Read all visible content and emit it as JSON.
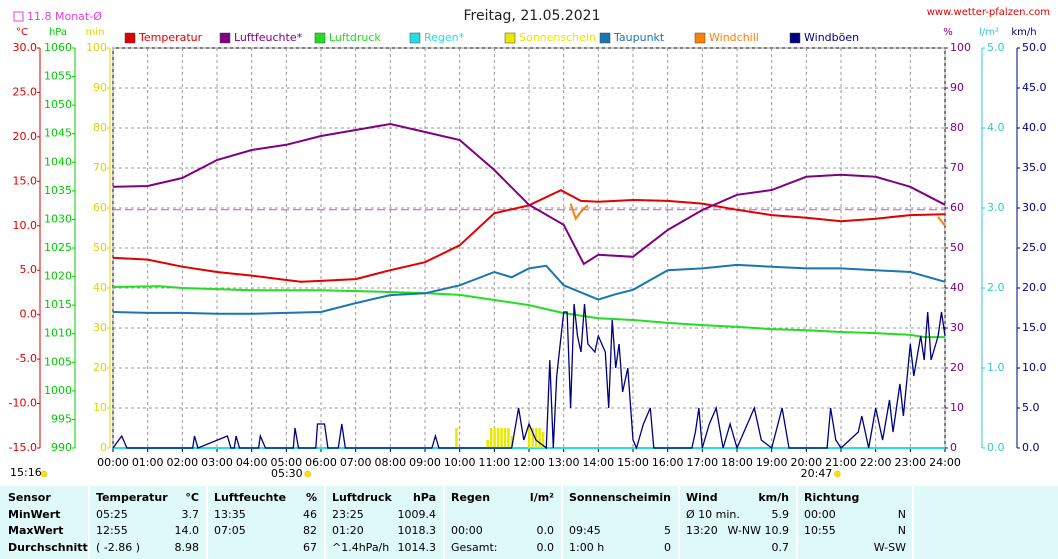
{
  "header": {
    "site": "www.wetter-pfalzen.com"
  },
  "chart_data": {
    "type": "line",
    "title": "Freitag, 21.05.2021",
    "monthly_average": 11.8,
    "monthly_average_label": "11.8 Monat-Ø",
    "monthly_average_color": "#e040e0",
    "xlim": [
      0,
      24
    ],
    "xticks": [
      {
        "value": 0,
        "label": "00:00"
      },
      {
        "value": 1,
        "label": "01:00"
      },
      {
        "value": 2,
        "label": "02:00"
      },
      {
        "value": 3,
        "label": "03:00"
      },
      {
        "value": 4,
        "label": "04:00"
      },
      {
        "value": 5,
        "label": "05:00"
      },
      {
        "value": 6,
        "label": "06:00"
      },
      {
        "value": 7,
        "label": "07:00"
      },
      {
        "value": 8,
        "label": "08:00"
      },
      {
        "value": 9,
        "label": "09:00"
      },
      {
        "value": 10,
        "label": "10:00"
      },
      {
        "value": 11,
        "label": "11:00"
      },
      {
        "value": 12,
        "label": "12:00"
      },
      {
        "value": 13,
        "label": "13:00"
      },
      {
        "value": 14,
        "label": "14:00"
      },
      {
        "value": 15,
        "label": "15:00"
      },
      {
        "value": 16,
        "label": "16:00"
      },
      {
        "value": 17,
        "label": "17:00"
      },
      {
        "value": 18,
        "label": "18:00"
      },
      {
        "value": 19,
        "label": "19:00"
      },
      {
        "value": 20,
        "label": "20:00"
      },
      {
        "value": 21,
        "label": "21:00"
      },
      {
        "value": 22,
        "label": "22:00"
      },
      {
        "value": 23,
        "label": "23:00"
      },
      {
        "value": 24,
        "label": "24:00"
      }
    ],
    "grid": true,
    "grid_axis": "pct",
    "axes": {
      "temp": {
        "label": "°C",
        "side": "left",
        "color": "#e00000",
        "lim": [
          -15,
          30
        ],
        "ticks": [
          {
            "value": -15,
            "label": "-15.0"
          },
          {
            "value": -10,
            "label": "-10.0"
          },
          {
            "value": -5,
            "label": "-5.0"
          },
          {
            "value": 0,
            "label": "0.0"
          },
          {
            "value": 5,
            "label": "5.0"
          },
          {
            "value": 10,
            "label": "10.0"
          },
          {
            "value": 15,
            "label": "15.0"
          },
          {
            "value": 20,
            "label": "20.0"
          },
          {
            "value": 25,
            "label": "25.0"
          },
          {
            "value": 30,
            "label": "30.0"
          }
        ]
      },
      "hpa": {
        "label": "hPa",
        "side": "left",
        "color": "#00cc00",
        "lim": [
          990,
          1060
        ],
        "ticks": [
          990,
          995,
          1000,
          1005,
          1010,
          1015,
          1020,
          1025,
          1030,
          1035,
          1040,
          1045,
          1050,
          1055,
          1060
        ]
      },
      "min": {
        "label": "min",
        "side": "left",
        "color": "#d8d800",
        "lim": [
          0,
          100
        ],
        "ticks": [
          0,
          10,
          20,
          30,
          40,
          50,
          60,
          70,
          80,
          90,
          100
        ]
      },
      "pct": {
        "label": "%",
        "side": "right",
        "color": "#800080",
        "lim": [
          0,
          100
        ],
        "ticks": [
          0,
          10,
          20,
          30,
          40,
          50,
          60,
          70,
          80,
          90,
          100
        ]
      },
      "rain": {
        "label": "l/m²",
        "side": "right",
        "color": "#33cccc",
        "lim": [
          0,
          5
        ],
        "ticks": [
          {
            "value": 0,
            "label": "0.0"
          },
          {
            "value": 1,
            "label": "1.0"
          },
          {
            "value": 2,
            "label": "2.0"
          },
          {
            "value": 3,
            "label": "3.0"
          },
          {
            "value": 4,
            "label": "4.0"
          },
          {
            "value": 5,
            "label": "5.0"
          }
        ]
      },
      "wind": {
        "label": "km/h",
        "side": "right",
        "color": "#000080",
        "lim": [
          0,
          50
        ],
        "ticks": [
          {
            "value": 0,
            "label": "0.0"
          },
          {
            "value": 5,
            "label": "5.0"
          },
          {
            "value": 10,
            "label": "10.0"
          },
          {
            "value": 15,
            "label": "15.0"
          },
          {
            "value": 20,
            "label": "20.0"
          },
          {
            "value": 25,
            "label": "25.0"
          },
          {
            "value": 30,
            "label": "30.0"
          },
          {
            "value": 35,
            "label": "35.0"
          },
          {
            "value": 40,
            "label": "40.0"
          },
          {
            "value": 45,
            "label": "45.0"
          },
          {
            "value": 50,
            "label": "50.0"
          }
        ]
      }
    },
    "series": [
      {
        "name": "Temperatur",
        "color": "#e00000",
        "axis": "temp",
        "x": [
          0,
          1,
          2,
          3,
          4,
          5,
          5.42,
          6,
          7,
          8,
          9,
          10,
          11,
          12,
          12.92,
          13.5,
          14,
          15,
          16,
          17,
          18,
          19,
          20,
          21,
          22,
          23,
          24
        ],
        "values": [
          6.4,
          6.2,
          5.4,
          4.8,
          4.4,
          3.9,
          3.7,
          3.8,
          4.0,
          5.0,
          5.9,
          7.8,
          11.4,
          12.3,
          14.0,
          12.8,
          12.7,
          12.9,
          12.8,
          12.5,
          11.8,
          11.2,
          10.9,
          10.5,
          10.8,
          11.2,
          11.3
        ]
      },
      {
        "name": "Luftfeuchte*",
        "color": "#800080",
        "axis": "pct",
        "x": [
          0,
          1,
          2,
          3,
          4,
          5,
          6,
          7,
          8,
          9,
          10,
          11,
          12,
          13,
          13.58,
          14,
          15,
          16,
          17,
          18,
          19,
          20,
          21,
          22,
          23,
          24
        ],
        "values": [
          65.3,
          65.5,
          67.5,
          72,
          74.5,
          75.8,
          78,
          79.5,
          81,
          79,
          77,
          69.5,
          60.8,
          55.8,
          46,
          48.3,
          47.8,
          54.5,
          59.5,
          63.3,
          64.5,
          67.8,
          68.3,
          67.8,
          65.3,
          60.8
        ]
      },
      {
        "name": "Luftdruck",
        "color": "#22dd22",
        "axis": "hpa",
        "x": [
          0,
          1.33,
          2,
          4,
          6,
          8,
          9,
          10,
          11,
          12,
          13,
          14,
          15,
          16,
          17,
          18,
          19,
          20,
          21,
          22,
          23,
          23.42,
          24
        ],
        "values": [
          1018.2,
          1018.3,
          1018,
          1017.6,
          1017.6,
          1017.3,
          1017.1,
          1016.8,
          1015.9,
          1015,
          1013.6,
          1012.7,
          1012.4,
          1011.9,
          1011.5,
          1011.2,
          1010.8,
          1010.6,
          1010.3,
          1010.1,
          1009.8,
          1009.4,
          1009.4
        ]
      },
      {
        "name": "Regen*",
        "color": "#22e0e0",
        "axis": "rain",
        "x": [
          0,
          24
        ],
        "values": [
          0,
          0
        ]
      },
      {
        "name": "Sonnenschein",
        "color": "#e8e800",
        "axis": "min",
        "type": "bar",
        "x": [
          9.9,
          10.8,
          10.9,
          11.0,
          11.1,
          11.2,
          11.3,
          11.4,
          11.5,
          12.0,
          12.1,
          12.2,
          12.3,
          12.4
        ],
        "values": [
          5,
          2,
          5,
          5,
          5,
          5,
          5,
          5,
          3,
          5,
          5,
          5,
          5,
          4
        ]
      },
      {
        "name": "Taupunkt",
        "color": "#1a75b0",
        "axis": "temp",
        "x": [
          0,
          1,
          2,
          3,
          4,
          5,
          6,
          7,
          8,
          9,
          10,
          11,
          11.5,
          12,
          12.5,
          13,
          13.5,
          14,
          14.5,
          15,
          16,
          17,
          18,
          19,
          20,
          21,
          22,
          23,
          24
        ],
        "values": [
          0.3,
          0.2,
          0.2,
          0.1,
          0.1,
          0.2,
          0.3,
          1.3,
          2.2,
          2.4,
          3.3,
          4.8,
          4.2,
          5.2,
          5.5,
          3.3,
          2.5,
          1.7,
          2.3,
          2.8,
          5.0,
          5.2,
          5.6,
          5.4,
          5.2,
          5.2,
          5.0,
          4.8,
          3.7
        ]
      },
      {
        "name": "Windchill",
        "color": "#ff8000",
        "axis": "temp",
        "x": [
          13.2,
          13.35,
          13.5,
          13.7,
          18,
          23.8,
          24
        ],
        "values": [
          12.5,
          10.8,
          11.6,
          12.3,
          null,
          11.0,
          10.0
        ]
      },
      {
        "name": "Windböen",
        "color": "#000080",
        "axis": "wind",
        "x": [
          0,
          0.25,
          0.4,
          2.3,
          2.35,
          2.45,
          3.3,
          3.4,
          3.5,
          3.55,
          3.65,
          4.2,
          4.25,
          4.4,
          5.2,
          5.25,
          5.35,
          5.85,
          5.9,
          6.1,
          6.2,
          6.5,
          6.6,
          6.7,
          9.2,
          9.3,
          9.4,
          11.5,
          11.7,
          11.85,
          12.0,
          12.2,
          12.5,
          12.6,
          12.7,
          12.8,
          13.0,
          13.1,
          13.2,
          13.3,
          13.4,
          13.5,
          13.6,
          13.7,
          13.9,
          14.0,
          14.2,
          14.3,
          14.4,
          14.5,
          14.6,
          14.7,
          14.85,
          15.0,
          15.1,
          15.3,
          15.5,
          15.6,
          16.7,
          16.8,
          16.9,
          17.0,
          17.2,
          17.4,
          17.6,
          17.8,
          18.0,
          18.5,
          18.7,
          19.0,
          19.3,
          19.5,
          20.6,
          20.7,
          20.85,
          21.0,
          21.5,
          21.6,
          21.8,
          22.0,
          22.2,
          22.4,
          22.5,
          22.7,
          22.8,
          23.0,
          23.1,
          23.3,
          23.4,
          23.5,
          23.6,
          23.8,
          23.9,
          24
        ],
        "values": [
          0,
          1.5,
          0,
          0,
          1.5,
          0,
          1.5,
          0,
          0,
          1.5,
          0,
          0,
          1.5,
          0,
          0,
          2.5,
          0,
          0,
          3,
          3,
          0,
          0,
          3,
          0,
          0,
          1.5,
          0,
          0,
          5,
          1,
          3,
          1,
          0,
          11,
          0,
          9,
          17,
          17,
          5,
          18,
          14,
          12,
          18,
          13,
          12,
          14,
          12,
          5,
          16,
          10,
          13,
          7,
          10,
          1,
          0,
          3,
          5,
          0,
          0,
          2,
          5,
          0,
          3,
          5,
          0,
          3,
          0,
          5,
          1,
          0,
          5,
          0,
          0,
          5,
          1,
          0,
          2,
          4,
          0,
          5,
          1,
          6,
          2,
          8,
          4,
          13,
          9,
          14,
          11,
          17,
          11,
          14,
          17,
          14
        ]
      }
    ],
    "annotations": {
      "sunrise": {
        "x": 5.5,
        "label": "05:30"
      },
      "sunset": {
        "x": 20.78,
        "label": "20:47"
      },
      "sunshine_duration": "15:16"
    }
  },
  "table": {
    "header": [
      [
        "Sensor"
      ],
      [
        "Temperatur",
        "°C"
      ],
      [
        "Luftfeuchte",
        "%"
      ],
      [
        "Luftdruck",
        "hPa"
      ],
      [
        "Regen",
        "l/m²"
      ],
      [
        "Sonnenschein",
        "min"
      ],
      [
        "Wind",
        "km/h"
      ],
      [
        "Richtung"
      ]
    ],
    "rows": [
      [
        [
          "MinWert"
        ],
        [
          "05:25",
          "3.7"
        ],
        [
          "13:35",
          "46"
        ],
        [
          "23:25",
          "1009.4"
        ],
        [
          null,
          null
        ],
        [
          null,
          null
        ],
        [
          "Ø 10 min.",
          "5.9"
        ],
        [
          "00:00",
          "N"
        ]
      ],
      [
        [
          "MaxWert"
        ],
        [
          "12:55",
          "14.0"
        ],
        [
          "07:05",
          "82"
        ],
        [
          "01:20",
          "1018.3"
        ],
        [
          "00:00",
          "0.0"
        ],
        [
          "09:45",
          "5"
        ],
        [
          "13:20",
          "W-NW 10.9"
        ],
        [
          "10:55",
          "N"
        ]
      ],
      [
        [
          "Durchschnitt"
        ],
        [
          "( -2.86 )",
          "8.98"
        ],
        [
          null,
          "67"
        ],
        [
          "^1.4hPa/h",
          "1014.3"
        ],
        [
          "Gesamt:",
          "0.0"
        ],
        [
          "1:00 h",
          "0"
        ],
        [
          null,
          "0.7"
        ],
        [
          null,
          "W-SW"
        ]
      ]
    ]
  }
}
